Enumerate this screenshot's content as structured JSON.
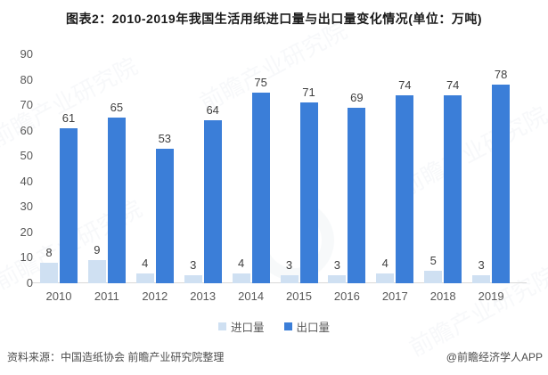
{
  "title": "图表2：2010-2019年我国生活用纸进口量与出口量变化情况(单位：万吨)",
  "watermark_text": "前瞻产业研究院",
  "footer": {
    "source": "资料来源：中国造纸协会 前瞻产业研究院整理",
    "credit": "@前瞻经济学人APP"
  },
  "colors": {
    "import_bar": "#cfe0f2",
    "export_bar": "#3b7ed8",
    "axis_text": "#595959",
    "value_label_text": "#404040",
    "baseline": "#d9d9d9"
  },
  "chart_data": {
    "type": "bar",
    "title": "图表2：2010-2019年我国生活用纸进口量与出口量变化情况(单位：万吨)",
    "categories": [
      "2010",
      "2011",
      "2012",
      "2013",
      "2014",
      "2015",
      "2016",
      "2017",
      "2018",
      "2019"
    ],
    "series": [
      {
        "name": "进口量",
        "color": "#cfe0f2",
        "values": [
          8,
          9,
          4,
          3,
          4,
          3,
          3,
          4,
          5,
          3
        ]
      },
      {
        "name": "出口量",
        "color": "#3b7ed8",
        "values": [
          61,
          65,
          53,
          64,
          75,
          71,
          69,
          74,
          74,
          78
        ]
      }
    ],
    "xlabel": "",
    "ylabel": "",
    "ylim": [
      0,
      90
    ],
    "ytick_step": 10,
    "grid": false,
    "legend_position": "bottom",
    "data_labels": true
  }
}
